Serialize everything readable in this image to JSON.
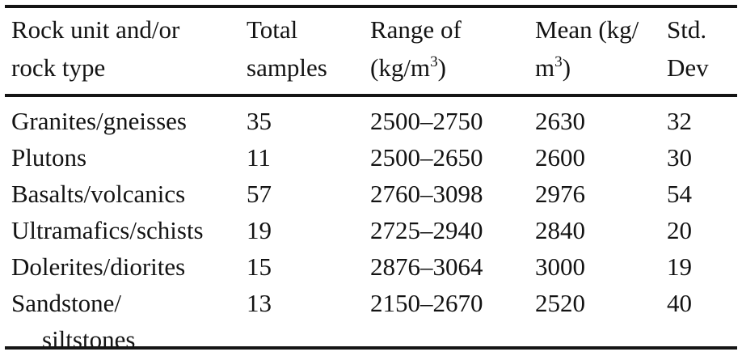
{
  "colors": {
    "background": "#ffffff",
    "text": "#131313",
    "rule": "#151515"
  },
  "table": {
    "headers": {
      "unit": {
        "line1": "Rock unit and/or",
        "line2": "rock type"
      },
      "samples": {
        "line1": "Total",
        "line2": "samples"
      },
      "range": {
        "line1": "Range of",
        "line2_prefix": "(kg/m",
        "line2_sup": "3",
        "line2_suffix": ")"
      },
      "mean": {
        "line1": "Mean (kg/",
        "line2_prefix": "m",
        "line2_sup": "3",
        "line2_suffix": ")"
      },
      "std": {
        "line1": "Std.",
        "line2": "Dev"
      }
    },
    "rows": [
      {
        "unit": "Granites/gneisses",
        "samples": "35",
        "range": "2500–2750",
        "mean": "2630",
        "std": "32"
      },
      {
        "unit": "Plutons",
        "samples": "11",
        "range": "2500–2650",
        "mean": "2600",
        "std": "30"
      },
      {
        "unit": "Basalts/volcanics",
        "samples": "57",
        "range": "2760–3098",
        "mean": "2976",
        "std": "54"
      },
      {
        "unit": "Ultramafics/schists",
        "samples": "19",
        "range": "2725–2940",
        "mean": "2840",
        "std": "20"
      },
      {
        "unit": "Dolerites/diorites",
        "samples": "15",
        "range": "2876–3064",
        "mean": "3000",
        "std": "19"
      },
      {
        "unit": "Sandstone/",
        "unit_line2": "siltstones",
        "samples": "13",
        "range": "2150–2670",
        "mean": "2520",
        "std": "40"
      }
    ]
  }
}
